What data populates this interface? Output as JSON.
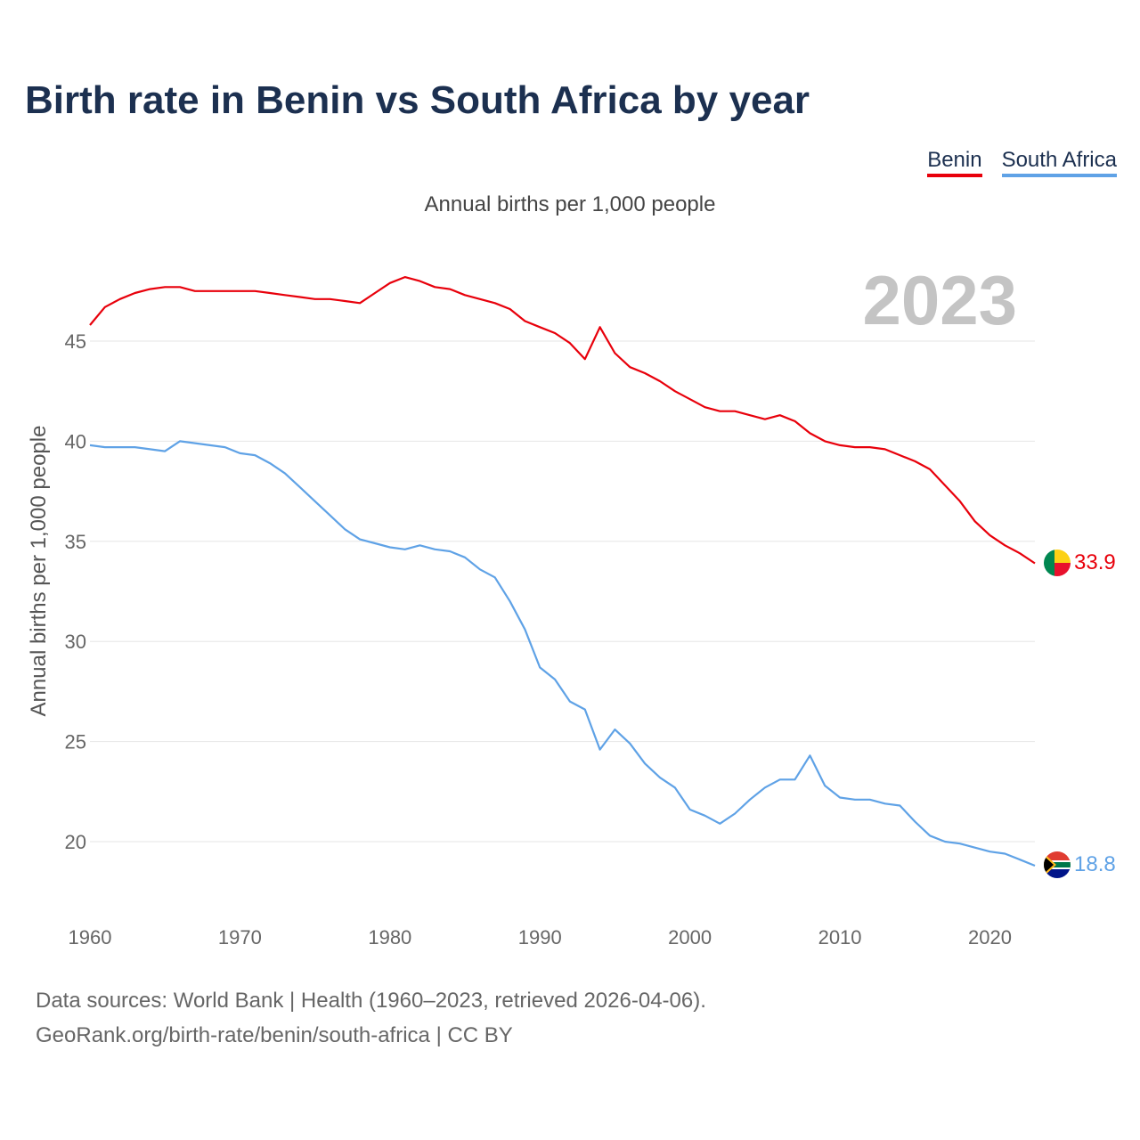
{
  "title": "Birth rate in Benin vs South Africa by year",
  "subtitle": "Annual births per 1,000 people",
  "year_label": "2023",
  "legend": [
    {
      "name": "Benin",
      "color": "#e8000b"
    },
    {
      "name": "South Africa",
      "color": "#5fa2e6"
    }
  ],
  "footer": {
    "line1": "Data sources: World Bank | Health (1960–2023, retrieved 2026-04-06).",
    "line2": "GeoRank.org/birth-rate/benin/south-africa | CC BY"
  },
  "chart_data": {
    "type": "line",
    "title": "Birth rate in Benin vs South Africa by year",
    "xlabel": "",
    "ylabel": "Annual births per 1,000 people",
    "xlim": [
      1960,
      2023
    ],
    "ylim": [
      17,
      48.5
    ],
    "xticks": [
      1960,
      1970,
      1980,
      1990,
      2000,
      2010,
      2020
    ],
    "yticks": [
      20,
      25,
      30,
      35,
      40,
      45
    ],
    "grid": true,
    "x": [
      1960,
      1961,
      1962,
      1963,
      1964,
      1965,
      1966,
      1967,
      1968,
      1969,
      1970,
      1971,
      1972,
      1973,
      1974,
      1975,
      1976,
      1977,
      1978,
      1979,
      1980,
      1981,
      1982,
      1983,
      1984,
      1985,
      1986,
      1987,
      1988,
      1989,
      1990,
      1991,
      1992,
      1993,
      1994,
      1995,
      1996,
      1997,
      1998,
      1999,
      2000,
      2001,
      2002,
      2003,
      2004,
      2005,
      2006,
      2007,
      2008,
      2009,
      2010,
      2011,
      2012,
      2013,
      2014,
      2015,
      2016,
      2017,
      2018,
      2019,
      2020,
      2021,
      2022,
      2023
    ],
    "series": [
      {
        "name": "Benin",
        "color": "#e8000b",
        "end_value": "33.9",
        "values": [
          45.8,
          46.7,
          47.1,
          47.4,
          47.6,
          47.7,
          47.7,
          47.5,
          47.5,
          47.5,
          47.5,
          47.5,
          47.4,
          47.3,
          47.2,
          47.1,
          47.1,
          47.0,
          46.9,
          47.4,
          47.9,
          48.2,
          48.0,
          47.7,
          47.6,
          47.3,
          47.1,
          46.9,
          46.6,
          46.0,
          45.7,
          45.4,
          44.9,
          44.1,
          45.7,
          44.4,
          43.7,
          43.4,
          43.0,
          42.5,
          42.1,
          41.7,
          41.5,
          41.5,
          41.3,
          41.1,
          41.3,
          41.0,
          40.4,
          40.0,
          39.8,
          39.7,
          39.7,
          39.6,
          39.3,
          39.0,
          38.6,
          37.8,
          37.0,
          36.0,
          35.3,
          34.8,
          34.4,
          33.9
        ]
      },
      {
        "name": "South Africa",
        "color": "#5fa2e6",
        "end_value": "18.8",
        "values": [
          39.8,
          39.7,
          39.7,
          39.7,
          39.6,
          39.5,
          40.0,
          39.9,
          39.8,
          39.7,
          39.4,
          39.3,
          38.9,
          38.4,
          37.7,
          37.0,
          36.3,
          35.6,
          35.1,
          34.9,
          34.7,
          34.6,
          34.8,
          34.6,
          34.5,
          34.2,
          33.6,
          33.2,
          32.0,
          30.6,
          28.7,
          28.1,
          27.0,
          26.6,
          24.6,
          25.6,
          24.9,
          23.9,
          23.2,
          22.7,
          21.6,
          21.3,
          20.9,
          21.4,
          22.1,
          22.7,
          23.1,
          23.1,
          24.3,
          22.8,
          22.2,
          22.1,
          22.1,
          21.9,
          21.8,
          21.0,
          20.3,
          20.0,
          19.9,
          19.7,
          19.5,
          19.4,
          19.1,
          18.8
        ]
      }
    ]
  }
}
